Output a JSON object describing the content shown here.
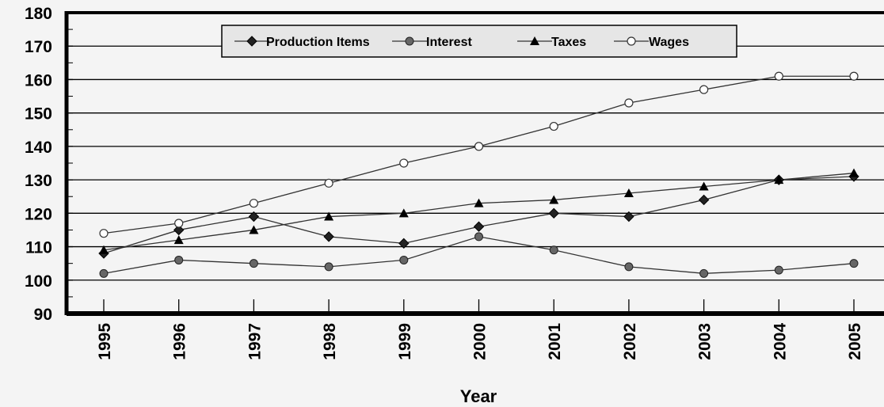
{
  "chart_data": {
    "type": "line",
    "title": "",
    "xlabel": "Year",
    "ylabel": "",
    "categories": [
      "1995",
      "1996",
      "1997",
      "1998",
      "1999",
      "2000",
      "2001",
      "2002",
      "2003",
      "2004",
      "2005"
    ],
    "ylim": [
      90,
      180
    ],
    "yticks": [
      "90",
      "100",
      "110",
      "120",
      "130",
      "140",
      "150",
      "160",
      "170",
      "180"
    ],
    "grid": true,
    "legend_position": "top",
    "series": [
      {
        "name": "Production Items",
        "marker": "diamond",
        "values": [
          108,
          115,
          119,
          113,
          111,
          116,
          120,
          119,
          124,
          130,
          131
        ]
      },
      {
        "name": "Interest",
        "marker": "circle-filled",
        "values": [
          102,
          106,
          105,
          104,
          106,
          113,
          109,
          104,
          102,
          103,
          105
        ]
      },
      {
        "name": "Taxes",
        "marker": "triangle",
        "values": [
          109,
          112,
          115,
          119,
          120,
          123,
          124,
          126,
          128,
          130,
          132
        ]
      },
      {
        "name": "Wages",
        "marker": "circle-open",
        "values": [
          114,
          117,
          123,
          129,
          135,
          140,
          146,
          153,
          157,
          161,
          161
        ]
      }
    ]
  }
}
